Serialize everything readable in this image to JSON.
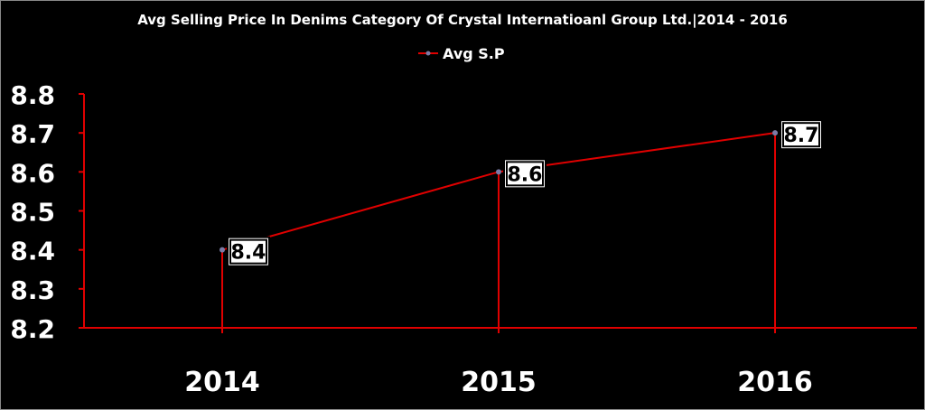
{
  "colors": {
    "background": "#000000",
    "axis": "#e00000",
    "series_line": "#e00000",
    "marker": "#7b7ba6",
    "text": "#ffffff",
    "label_box_fill": "#ffffff",
    "label_box_border": "#000000",
    "label_text": "#000000"
  },
  "chart_data": {
    "type": "line",
    "title": "Avg Selling Price In Denims Category Of Crystal Internatioanl Group Ltd.|2014 - 2016",
    "categories": [
      "2014",
      "2015",
      "2016"
    ],
    "series": [
      {
        "name": "Avg S.P",
        "values": [
          8.4,
          8.6,
          8.7
        ],
        "labels": [
          "8.4",
          "8.6",
          "8.7"
        ]
      }
    ],
    "ylim": [
      8.2,
      8.8
    ],
    "yticks": [
      "8.8",
      "8.7",
      "8.6",
      "8.5",
      "8.4",
      "8.3",
      "8.2"
    ],
    "ytick_values": [
      8.8,
      8.7,
      8.6,
      8.5,
      8.4,
      8.3,
      8.2
    ],
    "drop_lines": true,
    "grid": false,
    "legend_position": "top-center"
  }
}
